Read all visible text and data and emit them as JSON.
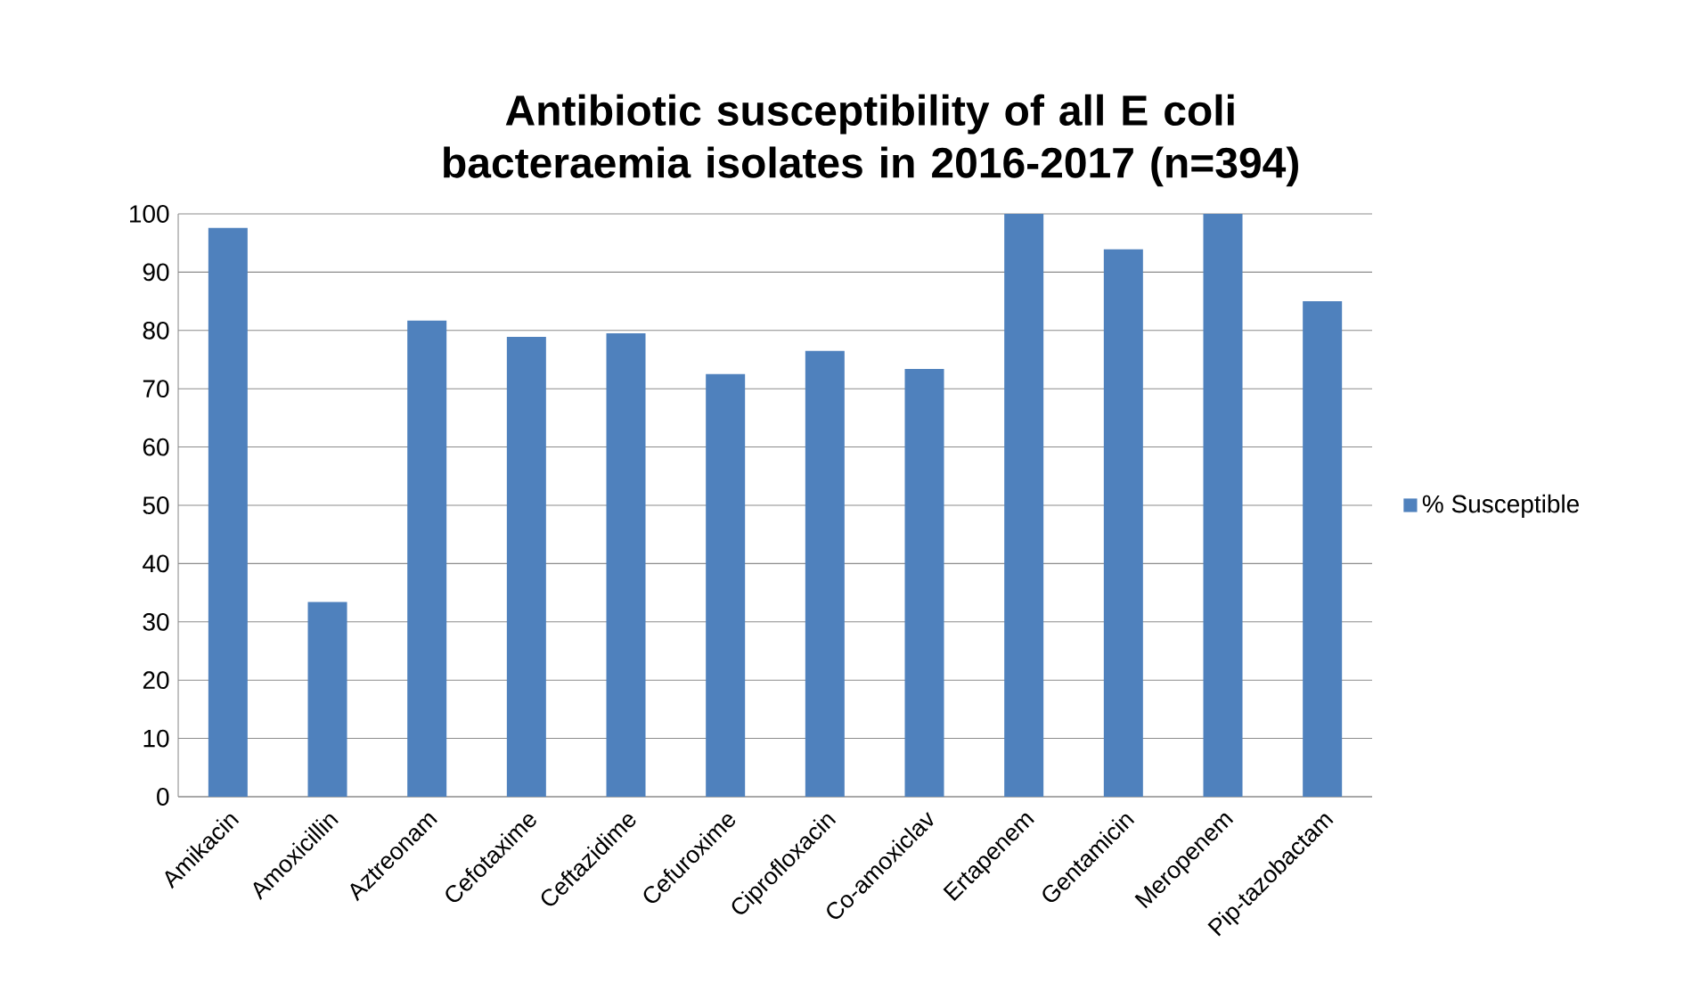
{
  "chart_data": {
    "type": "bar",
    "title": "Antibiotic susceptibility of all E coli bacteraemia isolates in 2016-2017 (n=394)",
    "categories": [
      "Amikacin",
      "Amoxicillin",
      "Aztreonam",
      "Cefotaxime",
      "Ceftazidime",
      "Cefuroxime",
      "Ciprofloxacin",
      "Co-amoxiclav",
      "Ertapenem",
      "Gentamicin",
      "Meropenem",
      "Pip-tazobactam"
    ],
    "series": [
      {
        "name": "% Susceptible",
        "color": "#4f81bd",
        "values": [
          97.6,
          33.4,
          81.7,
          78.9,
          79.5,
          72.5,
          76.5,
          73.4,
          100,
          93.9,
          100,
          85.0
        ]
      }
    ],
    "ylim": [
      0,
      100
    ],
    "yticks": [
      0,
      10,
      20,
      30,
      40,
      50,
      60,
      70,
      80,
      90,
      100
    ],
    "grid": "y",
    "legend": "right"
  }
}
